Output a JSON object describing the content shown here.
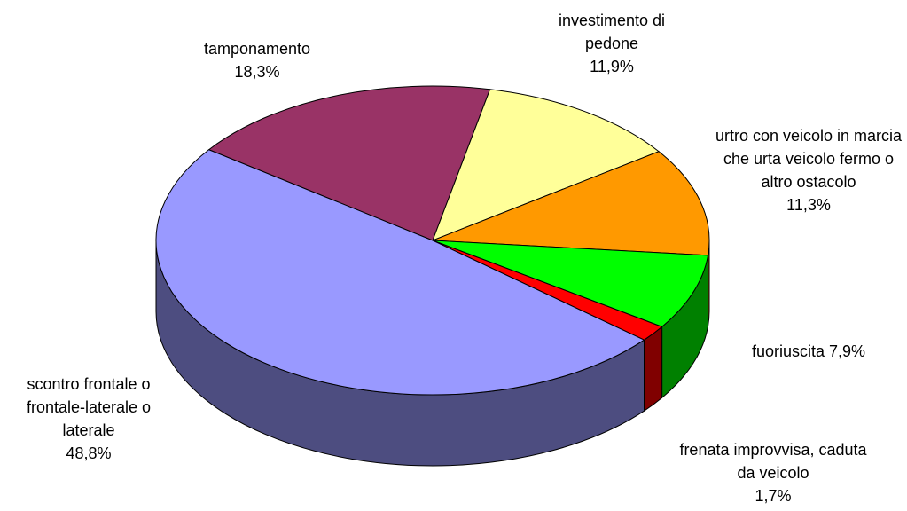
{
  "chart_data": {
    "type": "pie3d",
    "categories": [
      "tamponamento",
      "investimento di pedone",
      "urtro con veicolo in marcia che urta veicolo fermo o altro ostacolo",
      "fuoriuscita",
      "frenata improvvisa, caduta da veicolo",
      "scontro frontale o frontale-laterale o laterale"
    ],
    "values": [
      18.3,
      11.9,
      11.3,
      7.9,
      1.7,
      48.8
    ],
    "value_labels": [
      "18,3%",
      "11,9%",
      "11,3%",
      "7,9%",
      "1,7%",
      "48,8%"
    ],
    "colors": [
      "#993366",
      "#ffff99",
      "#ff9900",
      "#00ff00",
      "#ff0000",
      "#9999ff"
    ]
  }
}
